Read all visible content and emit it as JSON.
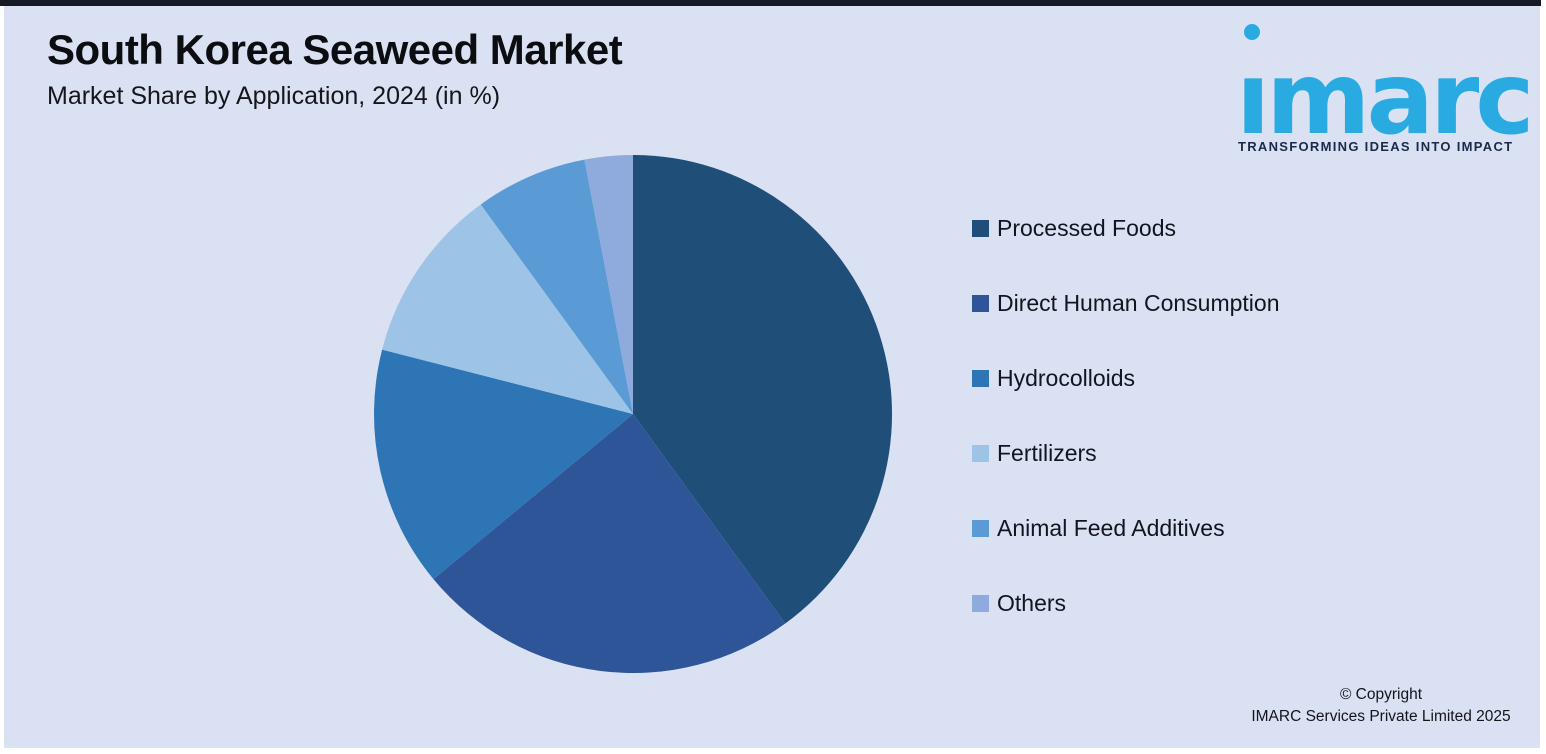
{
  "page": {
    "background": "#ffffff",
    "panel_background": "#d9e1f2",
    "top_bar_color": "#151a24"
  },
  "header": {
    "title": "South Korea Seaweed Market",
    "subtitle": "Market Share by Application, 2024 (in %)"
  },
  "logo": {
    "word": "imarc",
    "tagline": "TRANSFORMING IDEAS INTO IMPACT",
    "brand_color": "#29abe2",
    "tagline_color": "#1b2a4b"
  },
  "chart_data": {
    "type": "pie",
    "title": "South Korea Seaweed Market",
    "subtitle": "Market Share by Application, 2024 (in %)",
    "unit": "%",
    "start_angle_deg": 0,
    "direction": "clockwise",
    "legend_position": "right",
    "data_labels_shown": false,
    "series": [
      {
        "name": "Processed Foods",
        "value": 40,
        "color": "#1f4e79"
      },
      {
        "name": "Direct Human Consumption",
        "value": 24,
        "color": "#2e5597"
      },
      {
        "name": "Hydrocolloids",
        "value": 15,
        "color": "#2e75b6"
      },
      {
        "name": "Fertilizers",
        "value": 11,
        "color": "#9dc3e6"
      },
      {
        "name": "Animal Feed Additives",
        "value": 7,
        "color": "#5b9bd5"
      },
      {
        "name": "Others",
        "value": 3,
        "color": "#8faadc"
      }
    ]
  },
  "footer": {
    "copyright_line1": "© Copyright",
    "copyright_line2": "IMARC Services Private Limited 2025"
  }
}
